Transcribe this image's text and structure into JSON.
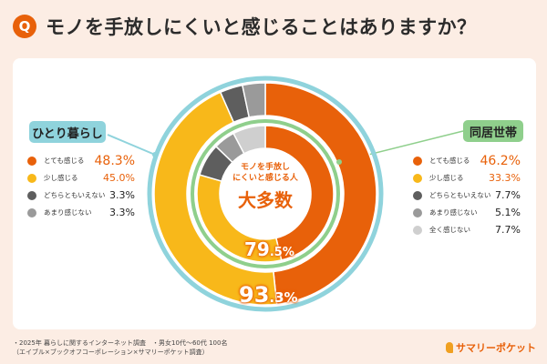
{
  "title": {
    "badge": "Q",
    "text": "モノを手放しにくいと感じることはありますか？"
  },
  "chart_data": {
    "type": "pie",
    "style": "nested-donut",
    "series": [
      {
        "name": "ひとり暮らし",
        "ring": "outer",
        "outline_color": "#8fd3dc",
        "values": [
          48.3,
          45.0,
          3.3,
          3.3
        ],
        "categories": [
          "とても感じる",
          "少し感じる",
          "どちらともいえない",
          "あまり感じない"
        ],
        "value_labels": [
          "48.3%",
          "45.0%",
          "3.3%",
          "3.3%"
        ]
      },
      {
        "name": "同居世帯",
        "ring": "inner",
        "outline_color": "#8fcf8c",
        "values": [
          46.2,
          33.3,
          7.7,
          5.1,
          7.7
        ],
        "categories": [
          "とても感じる",
          "少し感じる",
          "どちらともいえない",
          "あまり感じない",
          "全く感じない"
        ],
        "value_labels": [
          "46.2%",
          "33.3%",
          "7.7%",
          "5.1%",
          "7.7%"
        ]
      }
    ],
    "colors": {
      "とても感じる": "#e8610a",
      "少し感じる": "#f8b81a",
      "どちらともいえない": "#5e5e5e",
      "あまり感じない": "#9a9a9a",
      "全く感じない": "#cfcfcf"
    },
    "center": {
      "line1": "モノを手放し",
      "line2": "にくいと感じる人",
      "headline": "大多数"
    },
    "totals": {
      "inner": {
        "int": "79",
        "dec": ".5%"
      },
      "outer": {
        "int": "93",
        "dec": ".3%"
      }
    }
  },
  "footnote": {
    "line1": "・2025年 暮らしに関するインターネット調査　・男女10代〜60代 100名",
    "line2": "（エイブル×ブックオフコーポレーション×サマリーポケット調査）"
  },
  "logo": {
    "text": "サマリーポケット"
  }
}
